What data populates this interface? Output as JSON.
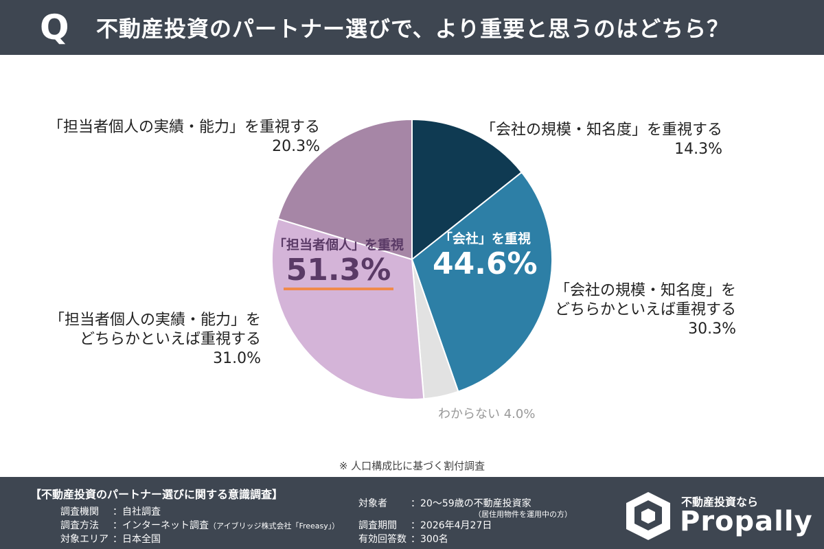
{
  "header": {
    "q": "Q",
    "title": "不動産投資のパートナー選びで、より重要と思うのはどちら？"
  },
  "chart_data": {
    "type": "pie",
    "slices": [
      {
        "label": "「会社の規模・知名度」を重視する",
        "value": 14.3,
        "value_label": "14.3%",
        "color": "#0f3a52"
      },
      {
        "label_lines": [
          "「会社の規模・知名度」を",
          "どちらかといえば重視する"
        ],
        "value": 30.3,
        "value_label": "30.3%",
        "color": "#2d7fa6"
      },
      {
        "label": "わからない",
        "value": 4.0,
        "value_label": "4.0%",
        "color": "#e2e2e2"
      },
      {
        "label_lines": [
          "「担当者個人の実績・能力」を",
          "どちらかといえば重視する"
        ],
        "value": 31.0,
        "value_label": "31.0%",
        "color": "#d4b4d8"
      },
      {
        "label": "「担当者個人の実績・能力」を重視する",
        "value": 20.3,
        "value_label": "20.3%",
        "color": "#a686a6"
      }
    ],
    "groups": [
      {
        "label": "「会社」を重視",
        "value_label": "44.6%"
      },
      {
        "label": "「担当者個人」を重視",
        "value_label": "51.3%"
      }
    ]
  },
  "note": "※ 人口構成比に基づく割付調査",
  "footer": {
    "title": "【不動産投資のパートナー選びに関する意識調査】",
    "left": [
      {
        "k": "調査機関",
        "v": "：自社調査"
      },
      {
        "k": "調査方法",
        "v": "：インターネット調査",
        "small": "（アイブリッジ株式会社「Freeasy」）"
      },
      {
        "k": "対象エリア",
        "v": "：日本全国"
      }
    ],
    "right": [
      {
        "k": "対象者",
        "v": "：20〜59歳の不動産投資家",
        "small": "（居住用物件を運用中の方）"
      },
      {
        "k": "調査期間",
        "v": "：2026年4月27日"
      },
      {
        "k": "有効回答数",
        "v": "：300名"
      }
    ],
    "logo_top": "不動産投資なら",
    "logo": "Propally"
  }
}
